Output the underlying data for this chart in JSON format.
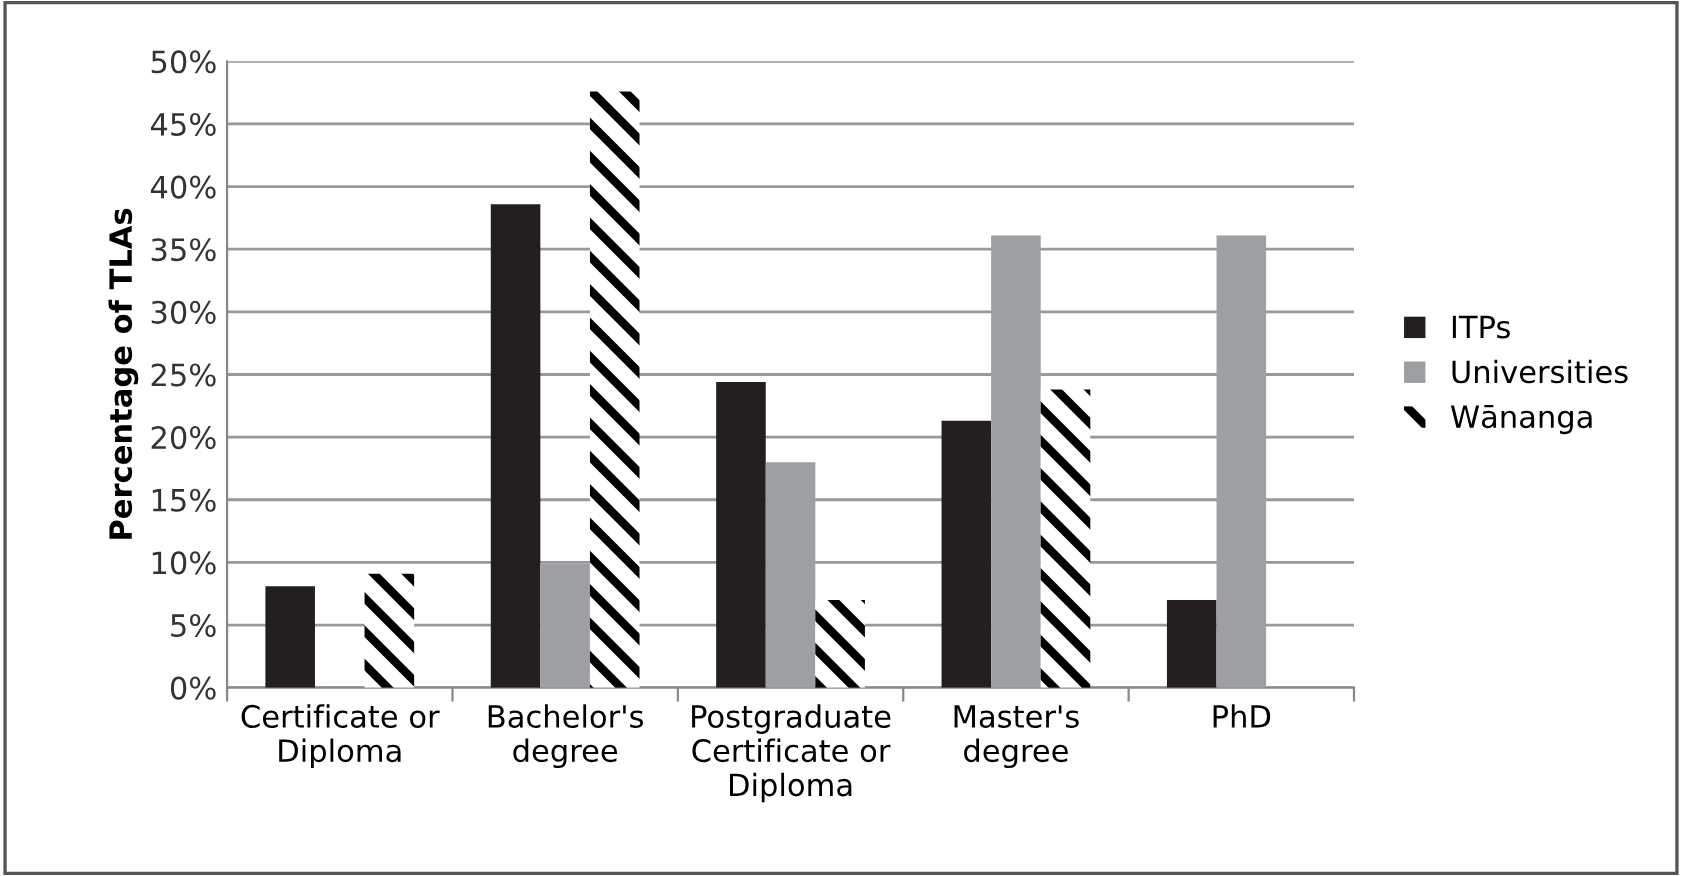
{
  "chart_data": {
    "type": "bar",
    "ylabel": "Percentage of TLAs",
    "categories": [
      "Certificate or\nDiploma",
      "Bachelor's\ndegree",
      "Postgraduate\nCertificate or\nDiploma",
      "Master's\ndegree",
      "PhD"
    ],
    "series": [
      {
        "name": "ITPs",
        "color": "#231f20",
        "values": [
          8.1,
          38.6,
          24.4,
          21.3,
          7.0
        ]
      },
      {
        "name": "Universities",
        "color": "#9d9fa2",
        "values": [
          0,
          9.9,
          18.0,
          36.1,
          36.1
        ]
      },
      {
        "name": "Wānanga",
        "color": "#000000",
        "values": [
          9.1,
          47.6,
          7.0,
          23.8,
          0
        ]
      }
    ],
    "ylim": [
      0,
      50
    ],
    "yticks": [
      {
        "value": 0,
        "label": "0%"
      },
      {
        "value": 5,
        "label": "5%"
      },
      {
        "value": 10,
        "label": "10%"
      },
      {
        "value": 15,
        "label": "15%"
      },
      {
        "value": 20,
        "label": "20%"
      },
      {
        "value": 25,
        "label": "25%"
      },
      {
        "value": 30,
        "label": "30%"
      },
      {
        "value": 35,
        "label": "35%"
      },
      {
        "value": 40,
        "label": "40%"
      },
      {
        "value": 45,
        "label": "45%"
      },
      {
        "value": 50,
        "label": "50%"
      }
    ],
    "grid": "y",
    "legend": "right"
  }
}
